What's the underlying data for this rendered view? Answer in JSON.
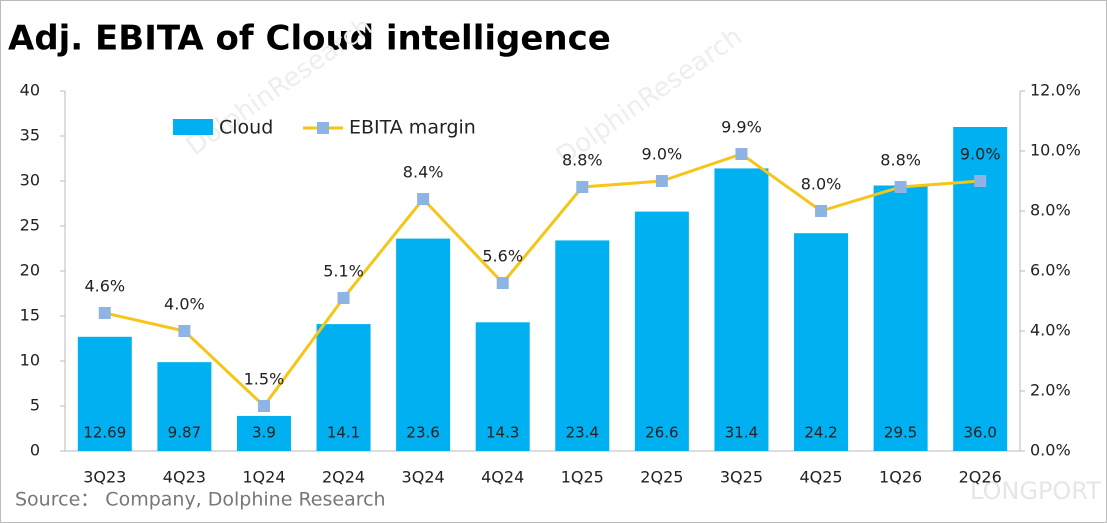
{
  "chart_data": {
    "type": "bar-line",
    "title": "Adj. EBITA of Cloud intelligence",
    "source": "Source：  Company, Dolphine Research",
    "watermarks": [
      "DolphinResearch",
      "LONGPORT"
    ],
    "categories": [
      "3Q23",
      "4Q23",
      "1Q24",
      "2Q24",
      "3Q24",
      "4Q24",
      "1Q25",
      "2Q25",
      "3Q25",
      "4Q25",
      "1Q26",
      "2Q26"
    ],
    "series": [
      {
        "name": "Cloud",
        "type": "bar",
        "color": "#00b0f0",
        "values": [
          12.69,
          9.87,
          3.9,
          14.1,
          23.6,
          14.3,
          23.4,
          26.6,
          31.4,
          24.2,
          29.5,
          36.0
        ],
        "value_labels": [
          "12.69",
          "9.87",
          "3.9",
          "14.1",
          "23.6",
          "14.3",
          "23.4",
          "26.6",
          "31.4",
          "24.2",
          "29.5",
          "36.0"
        ]
      },
      {
        "name": "EBITA margin",
        "type": "line",
        "axis": "y2",
        "color": "#f5c518",
        "marker_color": "#8eb4e3",
        "values": [
          4.6,
          4.0,
          1.5,
          5.1,
          8.4,
          5.6,
          8.8,
          9.0,
          9.9,
          8.0,
          8.8,
          9.0
        ],
        "value_labels": [
          "4.6%",
          "4.0%",
          "1.5%",
          "5.1%",
          "8.4%",
          "5.6%",
          "8.8%",
          "9.0%",
          "9.9%",
          "8.0%",
          "8.8%",
          "9.0%"
        ]
      }
    ],
    "ylim": [
      0,
      40
    ],
    "yticks": [
      0,
      5,
      10,
      15,
      20,
      25,
      30,
      35,
      40
    ],
    "y2lim": [
      0,
      12
    ],
    "y2ticks": [
      {
        "value": 0,
        "label": "0.0%"
      },
      {
        "value": 2,
        "label": "2.0%"
      },
      {
        "value": 4,
        "label": "4.0%"
      },
      {
        "value": 6,
        "label": "6.0%"
      },
      {
        "value": 8,
        "label": "8.0%"
      },
      {
        "value": 10,
        "label": "10.0%"
      },
      {
        "value": 12,
        "label": "12.0%"
      }
    ],
    "legend": "top-left",
    "grid": false
  }
}
